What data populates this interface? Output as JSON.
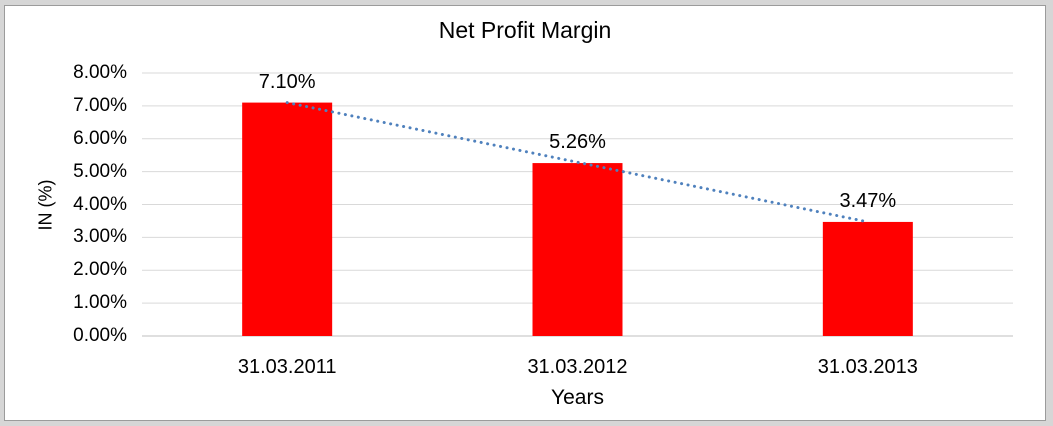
{
  "chart_data": {
    "type": "bar",
    "title": "Net Profit Margin",
    "xlabel": "Years",
    "ylabel": "IN (%)",
    "categories": [
      "31.03.2011",
      "31.03.2012",
      "31.03.2013"
    ],
    "values": [
      7.1,
      5.26,
      3.47
    ],
    "data_labels": [
      "7.10%",
      "5.26%",
      "3.47%"
    ],
    "ylim": [
      0,
      8
    ],
    "ytick_step": 1,
    "ytick_labels": [
      "0.00%",
      "1.00%",
      "2.00%",
      "3.00%",
      "4.00%",
      "5.00%",
      "6.00%",
      "7.00%",
      "8.00%"
    ],
    "grid": true,
    "legend": "none",
    "trendline": {
      "type": "linear",
      "style": "dotted",
      "from_value": 7.1,
      "to_value": 3.47
    }
  },
  "colors": {
    "bar": "#FF0000",
    "trendline": "#4F81BD",
    "gridline": "#D9D9D9",
    "axis_line": "#BFBFBF",
    "chart_background": "#FFFFFF",
    "outer_frame": "#D6D6D6",
    "border": "#9B9B9B",
    "text": "#000000"
  }
}
